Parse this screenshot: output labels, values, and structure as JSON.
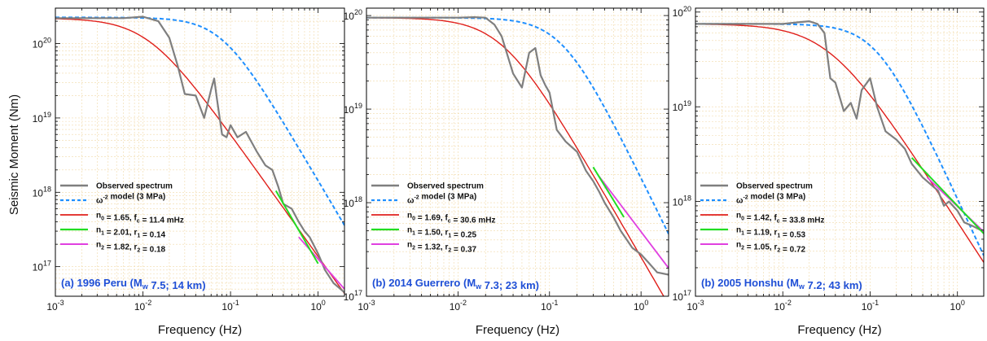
{
  "figure": {
    "ylabel": "Seismic Moment (Nm)",
    "xlabel": "Frequency (Hz)"
  },
  "chart_data": [
    {
      "type": "line",
      "panel_label": "(a) 1996 Peru (Mw 7.5; 14 km)",
      "xscale": "log",
      "yscale": "log",
      "xlim": [
        0.001,
        2.0
      ],
      "ylim": [
        4e+16,
        3e+20
      ],
      "xticks": [
        "10-3",
        "10-2",
        "10-1",
        "100"
      ],
      "yticks": [
        "1017",
        "1018",
        "1019",
        "1020"
      ],
      "grid": true,
      "legend_placement": "bottom-left",
      "legend": [
        "Observed spectrum",
        "ω-2 model (3 MPa)",
        "n0 = 1.65, fc = 11.4 mHz",
        "n1 = 2.01, r1 = 0.14",
        "n2 = 1.82, r2 = 0.18"
      ],
      "colors": {
        "observed": "#7f7f7f",
        "omega2": "#1f8fff",
        "n0": "#e0201b",
        "n1": "#22dd22",
        "n2": "#e040e0"
      },
      "series": [
        {
          "name": "Observed spectrum",
          "x": [
            0.001,
            0.003,
            0.006,
            0.01,
            0.015,
            0.02,
            0.025,
            0.03,
            0.04,
            0.05,
            0.06,
            0.065,
            0.07,
            0.08,
            0.09,
            0.1,
            0.12,
            0.15,
            0.2,
            0.25,
            0.3,
            0.35,
            0.4,
            0.5,
            0.6,
            0.7,
            0.8,
            1.0,
            1.2,
            1.5,
            2.0
          ],
          "y": [
            2.2e+20,
            2.2e+20,
            2.2e+20,
            2.3e+20,
            2e+20,
            1.2e+20,
            5e+19,
            2.1e+19,
            2e+19,
            1e+19,
            2.4e+19,
            3.4e+19,
            1.8e+19,
            6e+18,
            5.5e+18,
            8e+18,
            5.5e+18,
            6.5e+18,
            3.5e+18,
            2.3e+18,
            2e+18,
            1.2e+18,
            7e+17,
            6e+17,
            4e+17,
            3e+17,
            2.5e+17,
            1.5e+17,
            9e+16,
            6e+16,
            4.5e+16
          ]
        },
        {
          "name": "ω-2 model (3 MPa)",
          "fc": 0.08,
          "M0": 2.25e+20,
          "n": 2.0,
          "x_range": [
            0.001,
            2.0
          ]
        },
        {
          "name": "n0 = 1.65, fc = 11.4 mHz",
          "fc": 0.0114,
          "M0": 2.2e+20,
          "n": 1.65,
          "x_range": [
            0.001,
            2.0
          ]
        },
        {
          "name": "n1 = 2.01, r1 = 0.14",
          "x": [
            0.33,
            1.0
          ],
          "y": [
            1.05e+18,
            1.1e+17
          ]
        },
        {
          "name": "n2 = 1.82, r2 = 0.18",
          "x": [
            0.6,
            2.0
          ],
          "y": [
            2.5e+17,
            5e+16
          ]
        }
      ]
    },
    {
      "type": "line",
      "panel_label": "(b) 2014 Guerrero (Mw 7.3; 23 km)",
      "xscale": "log",
      "yscale": "log",
      "xlim": [
        0.001,
        2.0
      ],
      "ylim": [
        1e+17,
        1.2e+20
      ],
      "xticks": [
        "10-3",
        "10-2",
        "10-1",
        "100"
      ],
      "yticks": [
        "1017",
        "1018",
        "1019",
        "1020"
      ],
      "grid": true,
      "legend_placement": "bottom-left",
      "legend": [
        "Observed spectrum",
        "ω-2 model (3 MPa)",
        "n0 = 1.69, fc = 30.6 mHz",
        "n1 = 1.50, r1 = 0.25",
        "n2 = 1.32, r2 = 0.37"
      ],
      "colors": {
        "observed": "#7f7f7f",
        "omega2": "#1f8fff",
        "n0": "#e0201b",
        "n1": "#22dd22",
        "n2": "#e040e0"
      },
      "series": [
        {
          "name": "Observed spectrum",
          "x": [
            0.001,
            0.005,
            0.01,
            0.015,
            0.02,
            0.025,
            0.03,
            0.04,
            0.05,
            0.06,
            0.07,
            0.08,
            0.09,
            0.1,
            0.12,
            0.15,
            0.2,
            0.25,
            0.3,
            0.35,
            0.4,
            0.5,
            0.6,
            0.7,
            0.8,
            1.0,
            1.2,
            1.5,
            2.0
          ],
          "y": [
            9.5e+19,
            9.5e+19,
            9.5e+19,
            9.6e+19,
            9.5e+19,
            8e+19,
            6e+19,
            2.4e+19,
            1.7e+19,
            4e+19,
            4.5e+19,
            2.3e+19,
            1.8e+19,
            1.5e+19,
            6e+18,
            4.5e+18,
            3.5e+18,
            2.2e+18,
            1.7e+18,
            1.3e+18,
            1e+18,
            7e+17,
            5e+17,
            4e+17,
            3.3e+17,
            2.8e+17,
            2.3e+17,
            1.8e+17,
            1.7e+17
          ]
        },
        {
          "name": "ω-2 model (3 MPa)",
          "fc": 0.14,
          "M0": 9.5e+19,
          "n": 2.0,
          "x_range": [
            0.001,
            2.0
          ]
        },
        {
          "name": "n0 = 1.69, fc = 30.6 mHz",
          "fc": 0.0306,
          "M0": 9.5e+19,
          "n": 1.69,
          "x_range": [
            0.001,
            2.0
          ]
        },
        {
          "name": "n1 = 1.50, r1 = 0.25",
          "x": [
            0.3,
            0.65
          ],
          "y": [
            2.4e+18,
            7e+17
          ]
        },
        {
          "name": "n2 = 1.32, r2 = 0.37",
          "x": [
            0.35,
            2.0
          ],
          "y": [
            1.9e+18,
            2e+17
          ]
        }
      ]
    },
    {
      "type": "line",
      "panel_label": "(b) 2005 Honshu (Mw 7.2; 43 km)",
      "xscale": "log",
      "yscale": "log",
      "xlim": [
        0.001,
        2.0
      ],
      "ylim": [
        1e+17,
        1.1e+20
      ],
      "xticks": [
        "10-3",
        "10-2",
        "10-1",
        "100"
      ],
      "yticks": [
        "1017",
        "1018",
        "1019",
        "1020"
      ],
      "grid": true,
      "legend_placement": "bottom-left",
      "legend": [
        "Observed spectrum",
        "ω-2 model (3 MPa)",
        "n0 = 1.42, fc = 33.8 mHz",
        "n1 = 1.19, r1 = 0.53",
        "n2 = 1.05, r2 = 0.72"
      ],
      "colors": {
        "observed": "#7f7f7f",
        "omega2": "#1f8fff",
        "n0": "#e0201b",
        "n1": "#22dd22",
        "n2": "#e040e0"
      },
      "series": [
        {
          "name": "Observed spectrum",
          "x": [
            0.001,
            0.005,
            0.01,
            0.015,
            0.02,
            0.025,
            0.03,
            0.035,
            0.04,
            0.05,
            0.06,
            0.07,
            0.08,
            0.1,
            0.12,
            0.15,
            0.2,
            0.25,
            0.3,
            0.4,
            0.5,
            0.6,
            0.7,
            0.8,
            1.0,
            1.2,
            1.5,
            2.0
          ],
          "y": [
            7.5e+19,
            7.5e+19,
            7.5e+19,
            7.8e+19,
            8e+19,
            7.5e+19,
            6e+19,
            2e+19,
            1.8e+19,
            9e+18,
            1.1e+19,
            7.5e+18,
            1.5e+19,
            2e+19,
            1e+19,
            5.5e+18,
            4.5e+18,
            3.6e+18,
            2.5e+18,
            1.8e+18,
            1.5e+18,
            1.3e+18,
            9e+17,
            1e+18,
            8e+17,
            6e+17,
            5.5e+17,
            4.8e+17
          ]
        },
        {
          "name": "ω-2 model (3 MPa)",
          "fc": 0.12,
          "M0": 7.5e+19,
          "n": 2.0,
          "x_range": [
            0.001,
            2.0
          ]
        },
        {
          "name": "n0 = 1.42, fc = 33.8 mHz",
          "fc": 0.0338,
          "M0": 7.5e+19,
          "n": 1.42,
          "x_range": [
            0.001,
            2.0
          ]
        },
        {
          "name": "n1 = 1.19, r1 = 0.53",
          "x": [
            0.3,
            2.0
          ],
          "y": [
            2.9e+18,
            4.6e+17
          ]
        },
        {
          "name": "n2 = 1.05, r2 = 0.72",
          "x": [
            0.45,
            2.0
          ],
          "y": [
            1.8e+18,
            4.8e+17
          ]
        }
      ]
    }
  ]
}
